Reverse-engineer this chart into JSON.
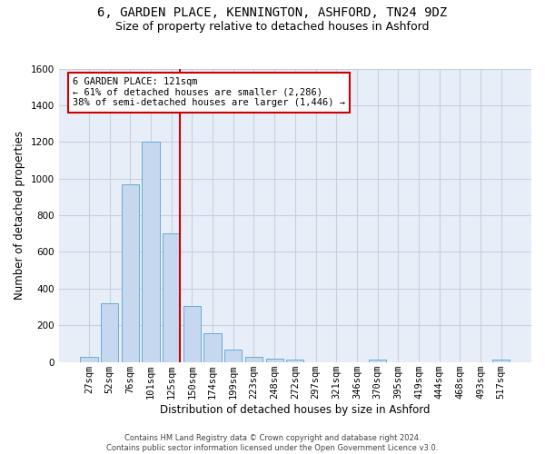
{
  "title_line1": "6, GARDEN PLACE, KENNINGTON, ASHFORD, TN24 9DZ",
  "title_line2": "Size of property relative to detached houses in Ashford",
  "xlabel": "Distribution of detached houses by size in Ashford",
  "ylabel": "Number of detached properties",
  "footer_line1": "Contains HM Land Registry data © Crown copyright and database right 2024.",
  "footer_line2": "Contains public sector information licensed under the Open Government Licence v3.0.",
  "bin_labels": [
    "27sqm",
    "52sqm",
    "76sqm",
    "101sqm",
    "125sqm",
    "150sqm",
    "174sqm",
    "199sqm",
    "223sqm",
    "248sqm",
    "272sqm",
    "297sqm",
    "321sqm",
    "346sqm",
    "370sqm",
    "395sqm",
    "419sqm",
    "444sqm",
    "468sqm",
    "493sqm",
    "517sqm"
  ],
  "bar_values": [
    30,
    320,
    970,
    1200,
    700,
    305,
    155,
    70,
    28,
    18,
    14,
    0,
    0,
    0,
    12,
    0,
    0,
    0,
    0,
    0,
    12
  ],
  "bar_color": "#c5d8f0",
  "bar_edge_color": "#6aaad4",
  "vline_index": 4,
  "annotation_box_text": "6 GARDEN PLACE: 121sqm\n← 61% of detached houses are smaller (2,286)\n38% of semi-detached houses are larger (1,446) →",
  "annotation_box_color": "#ffffff",
  "annotation_box_edge_color": "#cc0000",
  "vline_color": "#cc0000",
  "ylim": [
    0,
    1600
  ],
  "yticks": [
    0,
    200,
    400,
    600,
    800,
    1000,
    1200,
    1400,
    1600
  ],
  "grid_color": "#c8d0e0",
  "bg_color": "#e8eef8",
  "title_fontsize": 10,
  "subtitle_fontsize": 9,
  "axis_label_fontsize": 8.5,
  "tick_fontsize": 7.5,
  "footer_fontsize": 6,
  "annotation_fontsize": 7.5
}
